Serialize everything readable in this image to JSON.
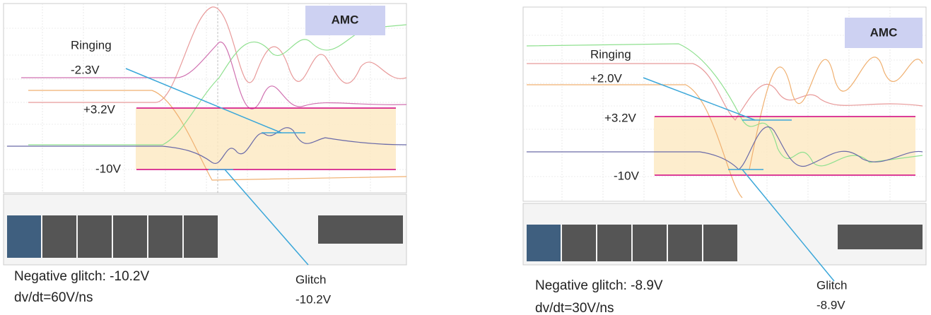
{
  "panels": [
    {
      "badge": "AMC",
      "ringing": {
        "label": "Ringing",
        "value": "-2.3V"
      },
      "upper_threshold": "+3.2V",
      "lower_threshold": "-10V",
      "glitch": {
        "label": "Glitch",
        "value": "-10.2V"
      },
      "caption": [
        "Negative glitch: -10.2V",
        "dv/dt=60V/ns"
      ]
    },
    {
      "badge": "AMC",
      "ringing": {
        "label": "Ringing",
        "value": "+2.0V"
      },
      "upper_threshold": "+3.2V",
      "lower_threshold": "-10V",
      "glitch": {
        "label": "Glitch",
        "value": "-8.9V"
      },
      "caption": [
        "Negative glitch: -8.9V",
        "dv/dt=30V/ns"
      ]
    }
  ]
}
